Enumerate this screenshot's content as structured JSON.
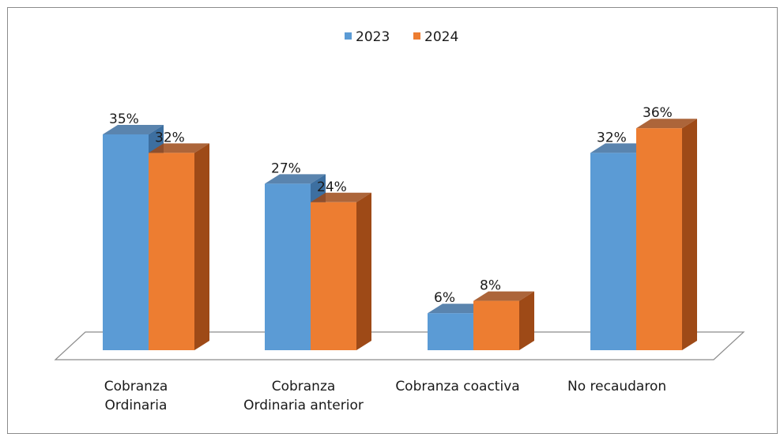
{
  "chart_data": {
    "type": "bar",
    "style": "3d-clustered-column",
    "categories": [
      [
        "Cobranza",
        "Ordinaria"
      ],
      [
        "Cobranza",
        "Ordinaria anterior"
      ],
      [
        "Cobranza coactiva"
      ],
      [
        "No recaudaron"
      ]
    ],
    "series": [
      {
        "name": "2023",
        "color": "#5b9bd5",
        "side_color": "#3d6fa0",
        "values": [
          35,
          27,
          6,
          32
        ],
        "labels": [
          "35%",
          "27%",
          "6%",
          "32%"
        ]
      },
      {
        "name": "2024",
        "color": "#ed7d31",
        "side_color": "#9e4a17",
        "values": [
          32,
          24,
          8,
          36
        ],
        "labels": [
          "32%",
          "24%",
          "8%",
          "36%"
        ]
      }
    ],
    "value_unit": "%",
    "ylim": [
      0,
      40
    ],
    "legend_position": "top-center",
    "grid": false
  }
}
